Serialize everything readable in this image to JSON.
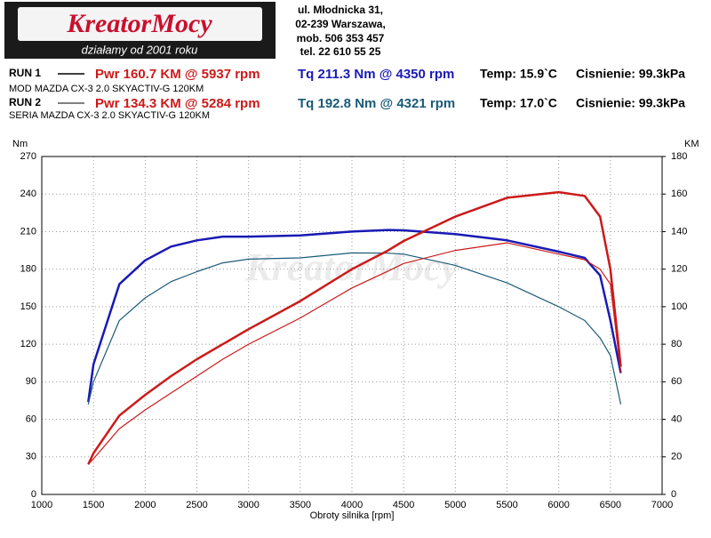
{
  "header": {
    "logo": "KreatorMocy",
    "slogan": "działamy od 2001 roku",
    "address": [
      "ul. Młodnicka 31,",
      "02-239  Warszawa,",
      "mob.  506 353 457",
      "tel.  22 610 55 25"
    ]
  },
  "runs": [
    {
      "label": "RUN 1",
      "pwr": "Pwr  160.7 KM @ 5937 rpm",
      "tq": "Tq 211.3 Nm @ 4350 rpm",
      "temp": "Temp: 15.9`C",
      "pressure": "Cisnienie: 99.3kPa",
      "description": "MOD MAZDA CX-3 2.0 SKYACTIV-G 120KM"
    },
    {
      "label": "RUN 2",
      "pwr": "Pwr  134.3 KM @ 5284 rpm",
      "tq": "Tq 192.8 Nm @ 4321 rpm",
      "temp": "Temp: 17.0`C",
      "pressure": "Cisnienie: 99.3kPa",
      "description": "SERIA MAZDA CX-3 2.0 SKYACTIV-G 120KM"
    }
  ],
  "chart_data": {
    "type": "line",
    "x_label": "Obroty silnika [rpm]",
    "y_label": "Nm",
    "y2_label": "KM",
    "x": [
      1450,
      1500,
      1750,
      2000,
      2250,
      2500,
      2750,
      3000,
      3500,
      4000,
      4350,
      4500,
      5000,
      5500,
      6000,
      6250,
      6400,
      6500,
      6600
    ],
    "xlim": [
      1000,
      7000
    ],
    "xticks": [
      1000,
      1500,
      2000,
      2500,
      3000,
      3500,
      4000,
      4500,
      5000,
      5500,
      6000,
      6500,
      7000
    ],
    "ylim": [
      0,
      270
    ],
    "yticks": [
      0,
      30,
      60,
      90,
      120,
      150,
      180,
      210,
      240,
      270
    ],
    "y2lim": [
      0,
      180
    ],
    "y2ticks": [
      0,
      20,
      40,
      60,
      80,
      100,
      120,
      140,
      160,
      180
    ],
    "grid": true,
    "series": [
      {
        "name": "RUN 1",
        "color": "#1a1ab4",
        "width": 2.5,
        "values": [
          74,
          104,
          168,
          187,
          198,
          203,
          206,
          206,
          207,
          210,
          211.3,
          211,
          208,
          203,
          194,
          189,
          175,
          139,
          97
        ]
      },
      {
        "name": "RUN 2",
        "color": "#1a5a78",
        "width": 1.2,
        "values": [
          72,
          90,
          139,
          157,
          170,
          178,
          185,
          188,
          189,
          193,
          192.8,
          192,
          183,
          169,
          150,
          139,
          125,
          111,
          72
        ]
      },
      {
        "name": "RUN 1",
        "color": "#cc1a1a",
        "width": 2.5,
        "axis": "y2",
        "values": [
          16,
          22,
          42,
          53,
          63,
          72,
          80,
          88,
          103,
          120,
          130,
          135,
          148,
          158,
          161,
          159,
          148,
          120,
          68
        ]
      },
      {
        "name": "RUN 2",
        "color": "#cc1a1a",
        "width": 1.2,
        "axis": "y2",
        "values": [
          16,
          19,
          35,
          45,
          54,
          63,
          72,
          80,
          94,
          110,
          119,
          123,
          130,
          134,
          128,
          125,
          120,
          112,
          65
        ]
      }
    ]
  }
}
